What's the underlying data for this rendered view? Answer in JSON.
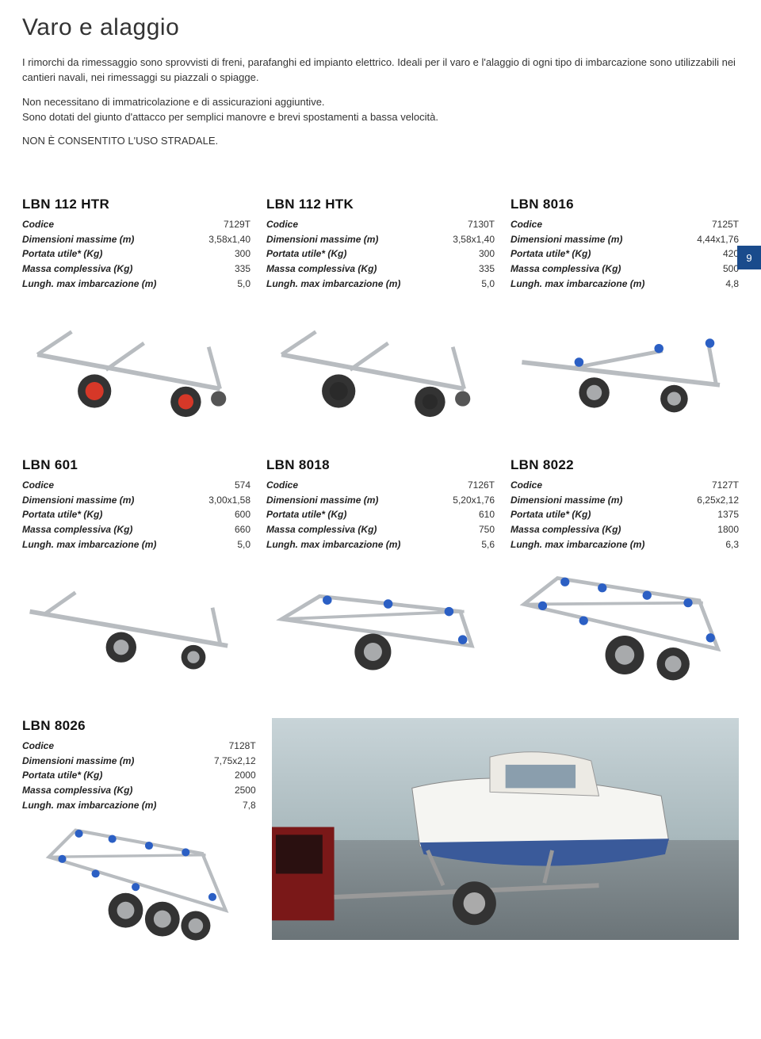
{
  "page_number": "9",
  "title": "Varo e alaggio",
  "intro": {
    "p1": "I rimorchi da rimessaggio sono sprovvisti di freni, parafanghi ed impianto elettrico. Ideali per il varo e l'alaggio di ogni tipo di imbarcazione sono utilizzabili nei cantieri navali, nei rimessaggi su piazzali o spiagge.",
    "p2": "Non necessitano di immatricolazione e di assicurazioni aggiuntive.",
    "p3": "Sono dotati del giunto d'attacco per semplici manovre e brevi spostamenti a bassa velocità.",
    "p4": "NON È CONSENTITO L'USO STRADALE."
  },
  "labels": {
    "codice": "Codice",
    "dimensioni": "Dimensioni massime (m)",
    "portata": "Portata utile* (Kg)",
    "massa": "Massa complessiva (Kg)",
    "lungh": "Lungh. max imbarcazione (m)"
  },
  "products": [
    {
      "name": "LBN 112 HTR",
      "codice": "7129T",
      "dimensioni": "3,58x1,40",
      "portata": "300",
      "massa": "335",
      "lungh": "5,0",
      "svg": "trailer-small-red"
    },
    {
      "name": "LBN 112 HTK",
      "codice": "7130T",
      "dimensioni": "3,58x1,40",
      "portata": "300",
      "massa": "335",
      "lungh": "5,0",
      "svg": "trailer-small-black"
    },
    {
      "name": "LBN 8016",
      "codice": "7125T",
      "dimensioni": "4,44x1,76",
      "portata": "420",
      "massa": "500",
      "lungh": "4,8",
      "svg": "trailer-med-blue"
    },
    {
      "name": "LBN 601",
      "codice": "574",
      "dimensioni": "3,00x1,58",
      "portata": "600",
      "massa": "660",
      "lungh": "5,0",
      "svg": "trailer-601"
    },
    {
      "name": "LBN 8018",
      "codice": "7126T",
      "dimensioni": "5,20x1,76",
      "portata": "610",
      "massa": "750",
      "lungh": "5,6",
      "svg": "trailer-8018"
    },
    {
      "name": "LBN 8022",
      "codice": "7127T",
      "dimensioni": "6,25x2,12",
      "portata": "1375",
      "massa": "1800",
      "lungh": "6,3",
      "svg": "trailer-8022"
    },
    {
      "name": "LBN 8026",
      "codice": "7128T",
      "dimensioni": "7,75x2,12",
      "portata": "2000",
      "massa": "2500",
      "lungh": "7,8",
      "svg": "trailer-8026"
    }
  ],
  "colors": {
    "badge_bg": "#1a4b8c",
    "frame": "#b8bcc0",
    "frame_dark": "#888c90",
    "wheel_red": "#d63828",
    "wheel_black": "#2a2a2a",
    "wheel_grey": "#a8aaac",
    "roller_blue": "#2b5fc4",
    "tire": "#333"
  }
}
